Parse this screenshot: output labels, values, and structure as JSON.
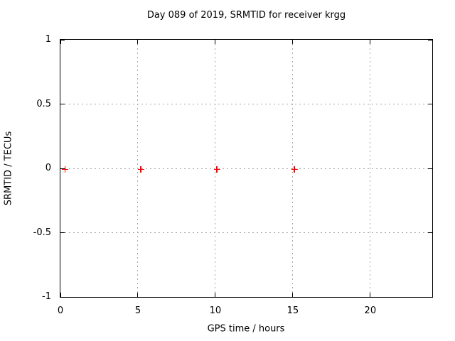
{
  "chart_data": {
    "type": "scatter",
    "title": "Day 089 of 2019, SRMTID for receiver krgg",
    "xlabel": "GPS time / hours",
    "ylabel": "SRMTID / TECUs",
    "xlim": [
      0,
      24
    ],
    "ylim": [
      -1,
      1
    ],
    "x_ticks": [
      0,
      5,
      10,
      15,
      20
    ],
    "x_tick_labels": [
      "0",
      "5",
      "10",
      "15",
      "20"
    ],
    "y_ticks": [
      -1,
      -0.5,
      0,
      0.5,
      1
    ],
    "y_tick_labels": [
      "-1",
      "-0.5",
      "0",
      "0.5",
      "1"
    ],
    "grid": true,
    "legend": "none",
    "series": [
      {
        "name": "SRMTID",
        "marker": "plus",
        "marker_color": "#ff0000",
        "points": [
          {
            "x": 0.3,
            "y": -0.01
          },
          {
            "x": 5.2,
            "y": -0.01
          },
          {
            "x": 10.1,
            "y": -0.01
          },
          {
            "x": 15.1,
            "y": -0.01
          }
        ]
      }
    ],
    "colors": {
      "background": "#ffffff",
      "border": "#000000",
      "grid": "#a6a6a6",
      "text": "#000000",
      "marker": "#ff0000"
    }
  }
}
